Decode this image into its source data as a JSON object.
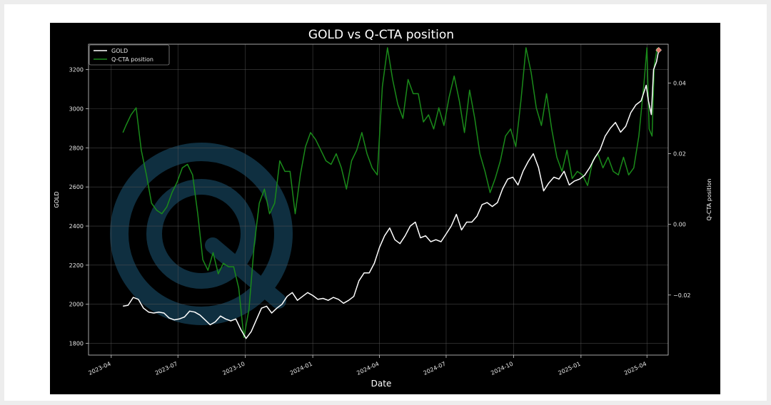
{
  "chart_data": {
    "type": "line",
    "title": "GOLD vs Q-CTA position",
    "xlabel": "Date",
    "ylabel_left": "GOLD",
    "ylabel_right": "Q-CTA position",
    "x_ticks": [
      "2023-04",
      "2023-07",
      "2023-10",
      "2024-01",
      "2024-04",
      "2024-07",
      "2024-10",
      "2025-01",
      "2025-04"
    ],
    "x_range": [
      "2023-03-01",
      "2025-04-30"
    ],
    "left_yticks": [
      1800,
      2000,
      2200,
      2400,
      2600,
      2800,
      3000,
      3200
    ],
    "left_ylim": [
      1740,
      3330
    ],
    "right_yticks": [
      -0.02,
      0.0,
      0.02,
      0.04
    ],
    "right_ylim": [
      -0.037,
      0.051
    ],
    "grid": true,
    "legend_position": "top-left",
    "series": [
      {
        "name": "GOLD",
        "axis": "left",
        "color": "#ffffff",
        "points": [
          [
            "2023-04-17",
            1990
          ],
          [
            "2023-04-24",
            1995
          ],
          [
            "2023-05-01",
            2035
          ],
          [
            "2023-05-08",
            2025
          ],
          [
            "2023-05-15",
            1980
          ],
          [
            "2023-05-22",
            1960
          ],
          [
            "2023-05-29",
            1955
          ],
          [
            "2023-06-05",
            1960
          ],
          [
            "2023-06-12",
            1955
          ],
          [
            "2023-06-19",
            1930
          ],
          [
            "2023-06-26",
            1920
          ],
          [
            "2023-07-03",
            1925
          ],
          [
            "2023-07-10",
            1935
          ],
          [
            "2023-07-17",
            1965
          ],
          [
            "2023-07-24",
            1960
          ],
          [
            "2023-07-31",
            1945
          ],
          [
            "2023-08-07",
            1920
          ],
          [
            "2023-08-14",
            1895
          ],
          [
            "2023-08-21",
            1910
          ],
          [
            "2023-08-28",
            1940
          ],
          [
            "2023-09-04",
            1925
          ],
          [
            "2023-09-11",
            1915
          ],
          [
            "2023-09-18",
            1925
          ],
          [
            "2023-09-25",
            1870
          ],
          [
            "2023-10-02",
            1825
          ],
          [
            "2023-10-09",
            1860
          ],
          [
            "2023-10-16",
            1920
          ],
          [
            "2023-10-23",
            1980
          ],
          [
            "2023-10-30",
            1990
          ],
          [
            "2023-11-06",
            1955
          ],
          [
            "2023-11-13",
            1980
          ],
          [
            "2023-11-20",
            2000
          ],
          [
            "2023-11-27",
            2040
          ],
          [
            "2023-12-04",
            2060
          ],
          [
            "2023-12-11",
            2020
          ],
          [
            "2023-12-18",
            2040
          ],
          [
            "2023-12-25",
            2060
          ],
          [
            "2024-01-01",
            2045
          ],
          [
            "2024-01-08",
            2025
          ],
          [
            "2024-01-15",
            2030
          ],
          [
            "2024-01-22",
            2020
          ],
          [
            "2024-01-29",
            2035
          ],
          [
            "2024-02-05",
            2025
          ],
          [
            "2024-02-12",
            2005
          ],
          [
            "2024-02-19",
            2020
          ],
          [
            "2024-02-26",
            2040
          ],
          [
            "2024-03-04",
            2120
          ],
          [
            "2024-03-11",
            2160
          ],
          [
            "2024-03-18",
            2160
          ],
          [
            "2024-03-25",
            2210
          ],
          [
            "2024-04-01",
            2290
          ],
          [
            "2024-04-08",
            2350
          ],
          [
            "2024-04-15",
            2390
          ],
          [
            "2024-04-22",
            2330
          ],
          [
            "2024-04-29",
            2310
          ],
          [
            "2024-05-06",
            2350
          ],
          [
            "2024-05-13",
            2400
          ],
          [
            "2024-05-20",
            2420
          ],
          [
            "2024-05-27",
            2340
          ],
          [
            "2024-06-03",
            2350
          ],
          [
            "2024-06-10",
            2320
          ],
          [
            "2024-06-17",
            2330
          ],
          [
            "2024-06-24",
            2320
          ],
          [
            "2024-07-01",
            2360
          ],
          [
            "2024-07-08",
            2400
          ],
          [
            "2024-07-15",
            2460
          ],
          [
            "2024-07-22",
            2380
          ],
          [
            "2024-07-29",
            2420
          ],
          [
            "2024-08-05",
            2420
          ],
          [
            "2024-08-12",
            2450
          ],
          [
            "2024-08-19",
            2510
          ],
          [
            "2024-08-26",
            2520
          ],
          [
            "2024-09-02",
            2500
          ],
          [
            "2024-09-09",
            2520
          ],
          [
            "2024-09-16",
            2590
          ],
          [
            "2024-09-23",
            2640
          ],
          [
            "2024-09-30",
            2650
          ],
          [
            "2024-10-07",
            2610
          ],
          [
            "2024-10-14",
            2680
          ],
          [
            "2024-10-21",
            2730
          ],
          [
            "2024-10-28",
            2770
          ],
          [
            "2024-11-04",
            2700
          ],
          [
            "2024-11-11",
            2580
          ],
          [
            "2024-11-18",
            2620
          ],
          [
            "2024-11-25",
            2650
          ],
          [
            "2024-12-02",
            2640
          ],
          [
            "2024-12-09",
            2680
          ],
          [
            "2024-12-16",
            2610
          ],
          [
            "2024-12-23",
            2630
          ],
          [
            "2024-12-30",
            2640
          ],
          [
            "2025-01-06",
            2660
          ],
          [
            "2025-01-13",
            2700
          ],
          [
            "2025-01-20",
            2750
          ],
          [
            "2025-01-27",
            2790
          ],
          [
            "2025-02-03",
            2860
          ],
          [
            "2025-02-10",
            2900
          ],
          [
            "2025-02-17",
            2930
          ],
          [
            "2025-02-24",
            2880
          ],
          [
            "2025-03-03",
            2910
          ],
          [
            "2025-03-10",
            2980
          ],
          [
            "2025-03-17",
            3020
          ],
          [
            "2025-03-24",
            3040
          ],
          [
            "2025-03-31",
            3120
          ],
          [
            "2025-04-03",
            3040
          ],
          [
            "2025-04-07",
            2970
          ],
          [
            "2025-04-10",
            3200
          ],
          [
            "2025-04-14",
            3240
          ],
          [
            "2025-04-17",
            3300
          ]
        ]
      },
      {
        "name": "Q-CTA position",
        "axis": "right",
        "color": "#1a8a1a",
        "points": [
          [
            "2023-04-17",
            0.026
          ],
          [
            "2023-04-21",
            0.028
          ],
          [
            "2023-04-28",
            0.031
          ],
          [
            "2023-05-05",
            0.033
          ],
          [
            "2023-05-12",
            0.021
          ],
          [
            "2023-05-19",
            0.014
          ],
          [
            "2023-05-26",
            0.006
          ],
          [
            "2023-06-02",
            0.004
          ],
          [
            "2023-06-09",
            0.003
          ],
          [
            "2023-06-16",
            0.005
          ],
          [
            "2023-06-23",
            0.009
          ],
          [
            "2023-06-30",
            0.012
          ],
          [
            "2023-07-07",
            0.016
          ],
          [
            "2023-07-14",
            0.017
          ],
          [
            "2023-07-21",
            0.014
          ],
          [
            "2023-07-28",
            0.003
          ],
          [
            "2023-08-04",
            -0.01
          ],
          [
            "2023-08-11",
            -0.013
          ],
          [
            "2023-08-18",
            -0.008
          ],
          [
            "2023-08-25",
            -0.014
          ],
          [
            "2023-09-01",
            -0.011
          ],
          [
            "2023-09-08",
            -0.012
          ],
          [
            "2023-09-15",
            -0.012
          ],
          [
            "2023-09-22",
            -0.018
          ],
          [
            "2023-09-29",
            -0.032
          ],
          [
            "2023-10-06",
            -0.024
          ],
          [
            "2023-10-13",
            -0.006
          ],
          [
            "2023-10-20",
            0.006
          ],
          [
            "2023-10-27",
            0.01
          ],
          [
            "2023-11-03",
            0.003
          ],
          [
            "2023-11-10",
            0.006
          ],
          [
            "2023-11-17",
            0.018
          ],
          [
            "2023-11-24",
            0.015
          ],
          [
            "2023-12-01",
            0.015
          ],
          [
            "2023-12-08",
            0.003
          ],
          [
            "2023-12-15",
            0.014
          ],
          [
            "2023-12-22",
            0.022
          ],
          [
            "2023-12-29",
            0.026
          ],
          [
            "2024-01-05",
            0.024
          ],
          [
            "2024-01-12",
            0.021
          ],
          [
            "2024-01-19",
            0.018
          ],
          [
            "2024-01-26",
            0.017
          ],
          [
            "2024-02-02",
            0.02
          ],
          [
            "2024-02-09",
            0.016
          ],
          [
            "2024-02-16",
            0.01
          ],
          [
            "2024-02-23",
            0.018
          ],
          [
            "2024-03-01",
            0.021
          ],
          [
            "2024-03-08",
            0.026
          ],
          [
            "2024-03-15",
            0.02
          ],
          [
            "2024-03-22",
            0.016
          ],
          [
            "2024-03-29",
            0.014
          ],
          [
            "2024-04-05",
            0.039
          ],
          [
            "2024-04-12",
            0.05
          ],
          [
            "2024-04-19",
            0.041
          ],
          [
            "2024-04-26",
            0.034
          ],
          [
            "2024-05-03",
            0.03
          ],
          [
            "2024-05-10",
            0.041
          ],
          [
            "2024-05-17",
            0.037
          ],
          [
            "2024-05-24",
            0.037
          ],
          [
            "2024-05-31",
            0.029
          ],
          [
            "2024-06-07",
            0.031
          ],
          [
            "2024-06-14",
            0.027
          ],
          [
            "2024-06-21",
            0.033
          ],
          [
            "2024-06-28",
            0.028
          ],
          [
            "2024-07-05",
            0.036
          ],
          [
            "2024-07-12",
            0.042
          ],
          [
            "2024-07-19",
            0.035
          ],
          [
            "2024-07-26",
            0.026
          ],
          [
            "2024-08-02",
            0.038
          ],
          [
            "2024-08-09",
            0.03
          ],
          [
            "2024-08-16",
            0.02
          ],
          [
            "2024-08-23",
            0.015
          ],
          [
            "2024-08-30",
            0.009
          ],
          [
            "2024-09-06",
            0.013
          ],
          [
            "2024-09-13",
            0.018
          ],
          [
            "2024-09-20",
            0.025
          ],
          [
            "2024-09-27",
            0.027
          ],
          [
            "2024-10-04",
            0.022
          ],
          [
            "2024-10-11",
            0.035
          ],
          [
            "2024-10-18",
            0.05
          ],
          [
            "2024-10-25",
            0.043
          ],
          [
            "2024-11-01",
            0.033
          ],
          [
            "2024-11-08",
            0.028
          ],
          [
            "2024-11-15",
            0.037
          ],
          [
            "2024-11-22",
            0.027
          ],
          [
            "2024-11-29",
            0.019
          ],
          [
            "2024-12-06",
            0.015
          ],
          [
            "2024-12-13",
            0.021
          ],
          [
            "2024-12-20",
            0.013
          ],
          [
            "2024-12-27",
            0.015
          ],
          [
            "2025-01-03",
            0.014
          ],
          [
            "2025-01-10",
            0.011
          ],
          [
            "2025-01-17",
            0.018
          ],
          [
            "2025-01-24",
            0.02
          ],
          [
            "2025-01-31",
            0.016
          ],
          [
            "2025-02-07",
            0.019
          ],
          [
            "2025-02-14",
            0.015
          ],
          [
            "2025-02-21",
            0.014
          ],
          [
            "2025-02-28",
            0.019
          ],
          [
            "2025-03-07",
            0.014
          ],
          [
            "2025-03-14",
            0.016
          ],
          [
            "2025-03-21",
            0.025
          ],
          [
            "2025-03-28",
            0.04
          ],
          [
            "2025-04-01",
            0.05
          ],
          [
            "2025-04-04",
            0.027
          ],
          [
            "2025-04-08",
            0.025
          ],
          [
            "2025-04-11",
            0.045
          ],
          [
            "2025-04-15",
            0.05
          ]
        ]
      }
    ]
  },
  "colors": {
    "figure_bg": "#000000",
    "grid": "#555555",
    "axis_text": "#e6e6e6",
    "gold_line": "#ffffff",
    "cta_line": "#1a8a1a",
    "end_marker": "#e07a6a",
    "watermark": "#2a5a7a"
  },
  "watermark_icon": "q-logo-watermark"
}
